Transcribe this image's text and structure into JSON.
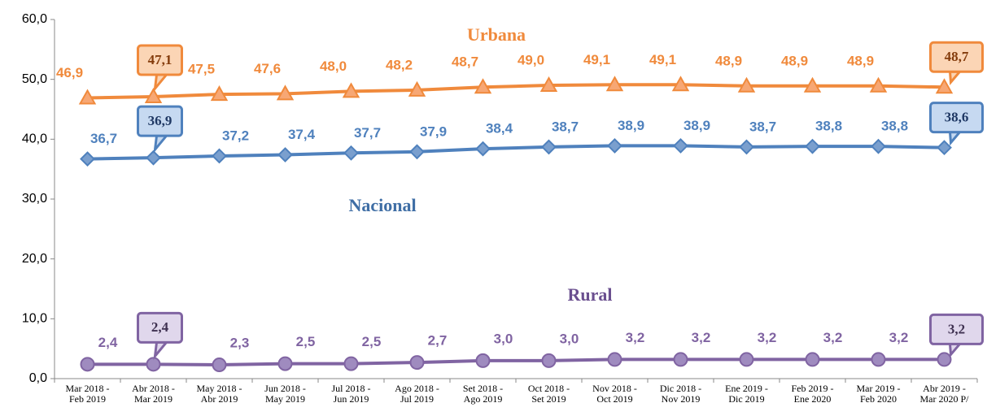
{
  "chart_data": {
    "type": "line",
    "categories": [
      "Mar 2018 -\nFeb 2019",
      "Abr 2018 -\nMar 2019",
      "May 2018 -\nAbr 2019",
      "Jun 2018 -\nMay 2019",
      "Jul 2018 -\nJun 2019",
      "Ago 2018 -\nJul 2019",
      "Set 2018 -\nAgo 2019",
      "Oct 2018 -\nSet 2019",
      "Nov 2018 -\nOct 2019",
      "Dic 2018 -\nNov 2019",
      "Ene 2019 -\nDic 2019",
      "Feb 2019 -\nEne 2020",
      "Mar 2019 -\nFeb 2020",
      "Abr 2019 -\nMar 2020 P/"
    ],
    "ylim": [
      0,
      60
    ],
    "yticks": [
      {
        "value": 0,
        "label": "0,0"
      },
      {
        "value": 10,
        "label": "10,0"
      },
      {
        "value": 20,
        "label": "20,0"
      },
      {
        "value": 30,
        "label": "30,0"
      },
      {
        "value": 40,
        "label": "40,0"
      },
      {
        "value": 50,
        "label": "50,0"
      },
      {
        "value": 60,
        "label": "60,0"
      }
    ],
    "grid": false,
    "series": [
      {
        "name": "Urbana",
        "color": "#f08a3c",
        "marker": "triangle",
        "values": [
          46.9,
          47.1,
          47.5,
          47.6,
          48.0,
          48.2,
          48.7,
          49.0,
          49.1,
          49.1,
          48.9,
          48.9,
          48.9,
          48.7
        ],
        "value_labels": [
          "46,9",
          "47,1",
          "47,5",
          "47,6",
          "48,0",
          "48,2",
          "48,7",
          "49,0",
          "49,1",
          "49,1",
          "48,9",
          "48,9",
          "48,9",
          "48,7"
        ]
      },
      {
        "name": "Nacional",
        "color": "#4f81bd",
        "marker": "diamond",
        "values": [
          36.7,
          36.9,
          37.2,
          37.4,
          37.7,
          37.9,
          38.4,
          38.7,
          38.9,
          38.9,
          38.7,
          38.8,
          38.8,
          38.6
        ],
        "value_labels": [
          "36,7",
          "36,9",
          "37,2",
          "37,4",
          "37,7",
          "37,9",
          "38,4",
          "38,7",
          "38,9",
          "38,9",
          "38,7",
          "38,8",
          "38,8",
          "38,6"
        ]
      },
      {
        "name": "Rural",
        "color": "#8064a2",
        "marker": "circle",
        "values": [
          2.4,
          2.4,
          2.3,
          2.5,
          2.5,
          2.7,
          3.0,
          3.0,
          3.2,
          3.2,
          3.2,
          3.2,
          3.2,
          3.2
        ],
        "value_labels": [
          "2,4",
          "2,4",
          "2,3",
          "2,5",
          "2,5",
          "2,7",
          "3,0",
          "3,0",
          "3,2",
          "3,2",
          "3,2",
          "3,2",
          "3,2",
          "3,2"
        ]
      }
    ]
  }
}
